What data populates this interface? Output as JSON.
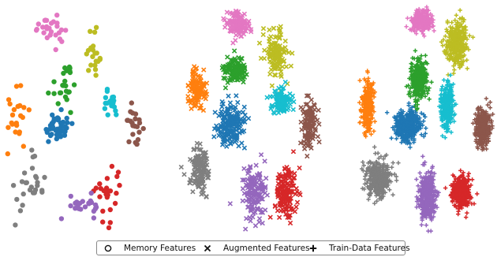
{
  "palette": [
    "#1f77b4",
    "#ff7f0e",
    "#2ca02c",
    "#d62728",
    "#9467bd",
    "#8c564b",
    "#e377c2",
    "#7f7f7f",
    "#bcbd22",
    "#17becf"
  ],
  "legend": {
    "items": [
      {
        "label": "Memory Features",
        "marker": "circle"
      },
      {
        "label": "Augmented Features",
        "marker": "x"
      },
      {
        "label": "Train-Data Features",
        "marker": "plus"
      }
    ],
    "placement": "bottom-center"
  },
  "chart_data": [
    {
      "type": "scatter",
      "title": "",
      "marker": "circle",
      "series_label": "Memory Features",
      "xlabel": "",
      "ylabel": "",
      "axes_visible": false,
      "xlim": [
        0,
        10
      ],
      "ylim": [
        0,
        10
      ],
      "clusters": [
        {
          "class": 0,
          "color": "#1f77b4",
          "center": [
            3.6,
            4.6
          ],
          "spread": [
            1.0,
            0.6
          ],
          "count": 40
        },
        {
          "class": 1,
          "color": "#ff7f0e",
          "center": [
            0.7,
            5.3
          ],
          "spread": [
            0.7,
            1.2
          ],
          "count": 22
        },
        {
          "class": 2,
          "color": "#2ca02c",
          "center": [
            4.2,
            6.6
          ],
          "spread": [
            1.1,
            0.9
          ],
          "count": 24
        },
        {
          "class": 3,
          "color": "#d62728",
          "center": [
            7.2,
            1.7
          ],
          "spread": [
            0.8,
            1.1
          ],
          "count": 26
        },
        {
          "class": 4,
          "color": "#9467bd",
          "center": [
            5.6,
            1.2
          ],
          "spread": [
            1.2,
            0.5
          ],
          "count": 22
        },
        {
          "class": 5,
          "color": "#8c564b",
          "center": [
            9.0,
            4.8
          ],
          "spread": [
            0.6,
            0.6
          ],
          "count": 22
        },
        {
          "class": 6,
          "color": "#e377c2",
          "center": [
            3.0,
            8.9
          ],
          "spread": [
            1.0,
            0.5
          ],
          "count": 26
        },
        {
          "class": 7,
          "color": "#7f7f7f",
          "center": [
            1.6,
            2.1
          ],
          "spread": [
            0.9,
            1.1
          ],
          "count": 26
        },
        {
          "class": 8,
          "color": "#bcbd22",
          "center": [
            6.2,
            7.6
          ],
          "spread": [
            0.7,
            1.0
          ],
          "count": 20
        },
        {
          "class": 9,
          "color": "#17becf",
          "center": [
            7.3,
            5.8
          ],
          "spread": [
            0.6,
            0.7
          ],
          "count": 18
        }
      ]
    },
    {
      "type": "scatter",
      "title": "",
      "marker": "x",
      "series_label": "Augmented Features",
      "xlabel": "",
      "ylabel": "",
      "axes_visible": false,
      "xlim": [
        0,
        10
      ],
      "ylim": [
        0,
        10
      ],
      "clusters": [
        {
          "class": 0,
          "color": "#1f77b4",
          "center": [
            3.6,
            4.7
          ],
          "spread": [
            0.9,
            0.9
          ],
          "count": 170
        },
        {
          "class": 1,
          "color": "#ff7f0e",
          "center": [
            1.2,
            6.3
          ],
          "spread": [
            0.5,
            0.8
          ],
          "count": 120
        },
        {
          "class": 2,
          "color": "#2ca02c",
          "center": [
            3.8,
            7.1
          ],
          "spread": [
            0.7,
            0.5
          ],
          "count": 120
        },
        {
          "class": 3,
          "color": "#d62728",
          "center": [
            7.4,
            1.8
          ],
          "spread": [
            0.7,
            1.0
          ],
          "count": 150
        },
        {
          "class": 4,
          "color": "#9467bd",
          "center": [
            5.2,
            1.8
          ],
          "spread": [
            0.7,
            1.0
          ],
          "count": 140
        },
        {
          "class": 5,
          "color": "#8c564b",
          "center": [
            9.0,
            4.8
          ],
          "spread": [
            0.5,
            0.9
          ],
          "count": 120
        },
        {
          "class": 6,
          "color": "#e377c2",
          "center": [
            4.0,
            9.1
          ],
          "spread": [
            0.7,
            0.5
          ],
          "count": 120
        },
        {
          "class": 7,
          "color": "#7f7f7f",
          "center": [
            1.4,
            2.7
          ],
          "spread": [
            0.6,
            0.9
          ],
          "count": 140
        },
        {
          "class": 8,
          "color": "#bcbd22",
          "center": [
            6.7,
            7.9
          ],
          "spread": [
            0.7,
            0.9
          ],
          "count": 130
        },
        {
          "class": 9,
          "color": "#17becf",
          "center": [
            7.1,
            5.8
          ],
          "spread": [
            0.6,
            0.6
          ],
          "count": 110
        }
      ]
    },
    {
      "type": "scatter",
      "title": "",
      "marker": "plus",
      "series_label": "Train-Data Features",
      "xlabel": "",
      "ylabel": "",
      "axes_visible": false,
      "xlim": [
        0,
        10
      ],
      "ylim": [
        0,
        10
      ],
      "clusters": [
        {
          "class": 0,
          "color": "#1f77b4",
          "center": [
            3.8,
            4.7
          ],
          "spread": [
            0.8,
            0.6
          ],
          "count": 450
        },
        {
          "class": 1,
          "color": "#ff7f0e",
          "center": [
            1.0,
            5.6
          ],
          "spread": [
            0.4,
            1.0
          ],
          "count": 300
        },
        {
          "class": 2,
          "color": "#2ca02c",
          "center": [
            4.6,
            6.7
          ],
          "spread": [
            0.6,
            0.8
          ],
          "count": 300
        },
        {
          "class": 3,
          "color": "#d62728",
          "center": [
            7.6,
            1.8
          ],
          "spread": [
            0.6,
            0.6
          ],
          "count": 380
        },
        {
          "class": 4,
          "color": "#9467bd",
          "center": [
            5.2,
            1.6
          ],
          "spread": [
            0.5,
            1.0
          ],
          "count": 350
        },
        {
          "class": 5,
          "color": "#8c564b",
          "center": [
            9.1,
            4.6
          ],
          "spread": [
            0.5,
            0.8
          ],
          "count": 300
        },
        {
          "class": 6,
          "color": "#e377c2",
          "center": [
            4.8,
            9.3
          ],
          "spread": [
            0.6,
            0.4
          ],
          "count": 280
        },
        {
          "class": 7,
          "color": "#7f7f7f",
          "center": [
            1.8,
            2.4
          ],
          "spread": [
            0.8,
            0.7
          ],
          "count": 380
        },
        {
          "class": 8,
          "color": "#bcbd22",
          "center": [
            7.3,
            8.3
          ],
          "spread": [
            0.7,
            0.9
          ],
          "count": 320
        },
        {
          "class": 9,
          "color": "#17becf",
          "center": [
            6.6,
            5.6
          ],
          "spread": [
            0.4,
            0.9
          ],
          "count": 260
        }
      ]
    }
  ]
}
